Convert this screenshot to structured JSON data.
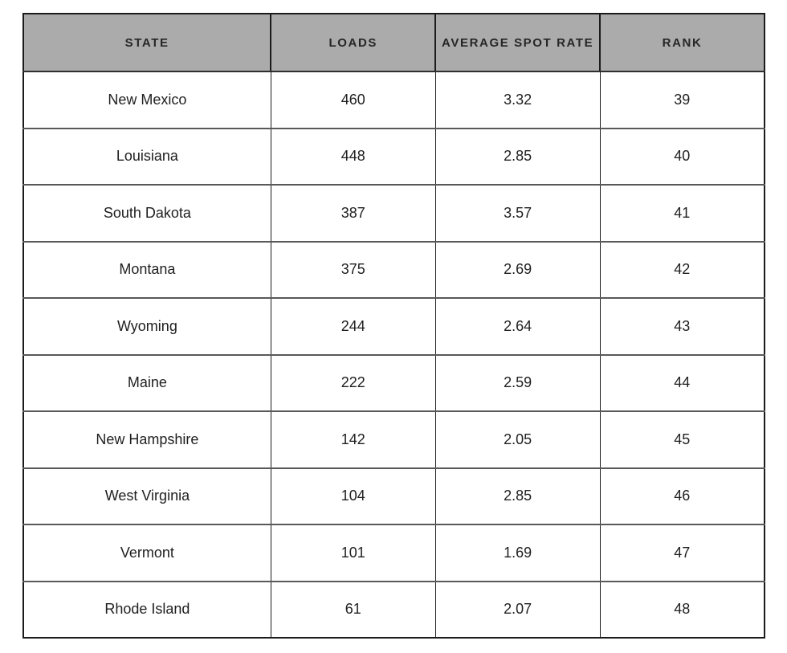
{
  "colors": {
    "header_bg": "#ababab",
    "header_text": "#262626",
    "row_bg": "#ffffff",
    "cell_text": "#1f1f1f",
    "outer_border": "#1b1b1b",
    "row_border": "#595959"
  },
  "table": {
    "columns": [
      "STATE",
      "LOADS",
      "AVERAGE SPOT RATE",
      "RANK"
    ],
    "rows": [
      {
        "state": "New Mexico",
        "loads": "460",
        "avg_spot_rate": "3.32",
        "rank": "39"
      },
      {
        "state": "Louisiana",
        "loads": "448",
        "avg_spot_rate": "2.85",
        "rank": "40"
      },
      {
        "state": "South Dakota",
        "loads": "387",
        "avg_spot_rate": "3.57",
        "rank": "41"
      },
      {
        "state": "Montana",
        "loads": "375",
        "avg_spot_rate": "2.69",
        "rank": "42"
      },
      {
        "state": "Wyoming",
        "loads": "244",
        "avg_spot_rate": "2.64",
        "rank": "43"
      },
      {
        "state": "Maine",
        "loads": "222",
        "avg_spot_rate": "2.59",
        "rank": "44"
      },
      {
        "state": "New Hampshire",
        "loads": "142",
        "avg_spot_rate": "2.05",
        "rank": "45"
      },
      {
        "state": "West Virginia",
        "loads": "104",
        "avg_spot_rate": "2.85",
        "rank": "46"
      },
      {
        "state": "Vermont",
        "loads": "101",
        "avg_spot_rate": "1.69",
        "rank": "47"
      },
      {
        "state": "Rhode Island",
        "loads": "61",
        "avg_spot_rate": "2.07",
        "rank": "48"
      }
    ]
  },
  "chart_data": {
    "type": "table",
    "title": "",
    "columns": [
      "STATE",
      "LOADS",
      "AVERAGE SPOT RATE",
      "RANK"
    ],
    "rows": [
      [
        "New Mexico",
        460,
        3.32,
        39
      ],
      [
        "Louisiana",
        448,
        2.85,
        40
      ],
      [
        "South Dakota",
        387,
        3.57,
        41
      ],
      [
        "Montana",
        375,
        2.69,
        42
      ],
      [
        "Wyoming",
        244,
        2.64,
        43
      ],
      [
        "Maine",
        222,
        2.59,
        44
      ],
      [
        "New Hampshire",
        142,
        2.05,
        45
      ],
      [
        "West Virginia",
        104,
        2.85,
        46
      ],
      [
        "Vermont",
        101,
        1.69,
        47
      ],
      [
        "Rhode Island",
        61,
        2.07,
        48
      ]
    ]
  }
}
